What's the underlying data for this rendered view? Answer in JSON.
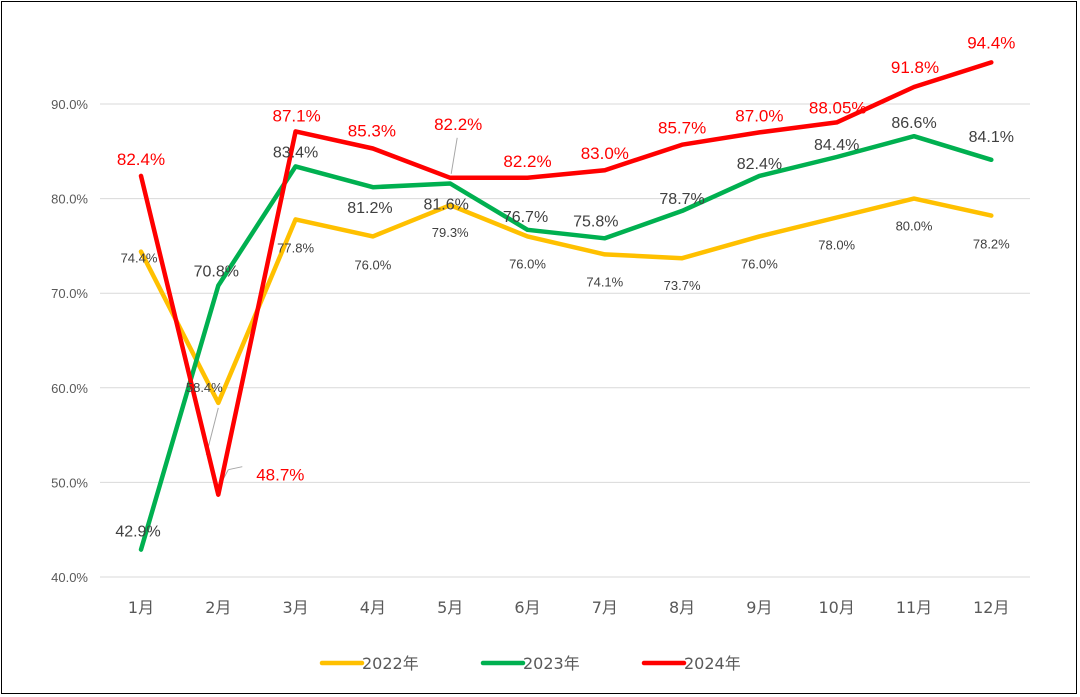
{
  "chart_data": {
    "type": "line",
    "title": "",
    "xlabel": "",
    "ylabel": "",
    "categories": [
      "1月",
      "2月",
      "3月",
      "4月",
      "5月",
      "6月",
      "7月",
      "8月",
      "9月",
      "10月",
      "11月",
      "12月"
    ],
    "ylim": [
      40,
      95
    ],
    "yticks": [
      40,
      50,
      60,
      70,
      80,
      90
    ],
    "ytick_labels": [
      "40.0%",
      "50.0%",
      "60.0%",
      "70.0%",
      "80.0%",
      "90.0%"
    ],
    "grid": "horizontal",
    "legend_position": "bottom",
    "series": [
      {
        "name": "2022年",
        "color": "#FFC000",
        "values": [
          74.4,
          58.4,
          77.8,
          76.0,
          79.3,
          76.0,
          74.1,
          73.7,
          76.0,
          78.0,
          80.0,
          78.2
        ],
        "labels": [
          "74.4%",
          "58.4%",
          "77.8%",
          "76.0%",
          "79.3%",
          "76.0%",
          "74.1%",
          "73.7%",
          "76.0%",
          "78.0%",
          "80.0%",
          "78.2%"
        ],
        "label_color": "#404040"
      },
      {
        "name": "2023年",
        "color": "#00B050",
        "values": [
          42.9,
          70.8,
          83.4,
          81.2,
          81.6,
          76.7,
          75.8,
          78.7,
          82.4,
          84.4,
          86.6,
          84.1
        ],
        "labels": [
          "42.9%",
          "70.8%",
          "83.4%",
          "81.2%",
          "81.6%",
          "76.7%",
          "75.8%",
          "78.7%",
          "82.4%",
          "84.4%",
          "86.6%",
          "84.1%"
        ],
        "label_color": "#404040"
      },
      {
        "name": "2024年",
        "color": "#FF0000",
        "values": [
          82.4,
          48.7,
          87.1,
          85.3,
          82.2,
          82.2,
          83.0,
          85.7,
          87.0,
          88.05,
          91.8,
          94.4
        ],
        "labels": [
          "82.4%",
          "48.7%",
          "87.1%",
          "85.3%",
          "82.2%",
          "82.2%",
          "83.0%",
          "85.7%",
          "87.0%",
          "88.05%",
          "91.8%",
          "94.4%"
        ],
        "label_color": "#FF0000"
      }
    ]
  }
}
